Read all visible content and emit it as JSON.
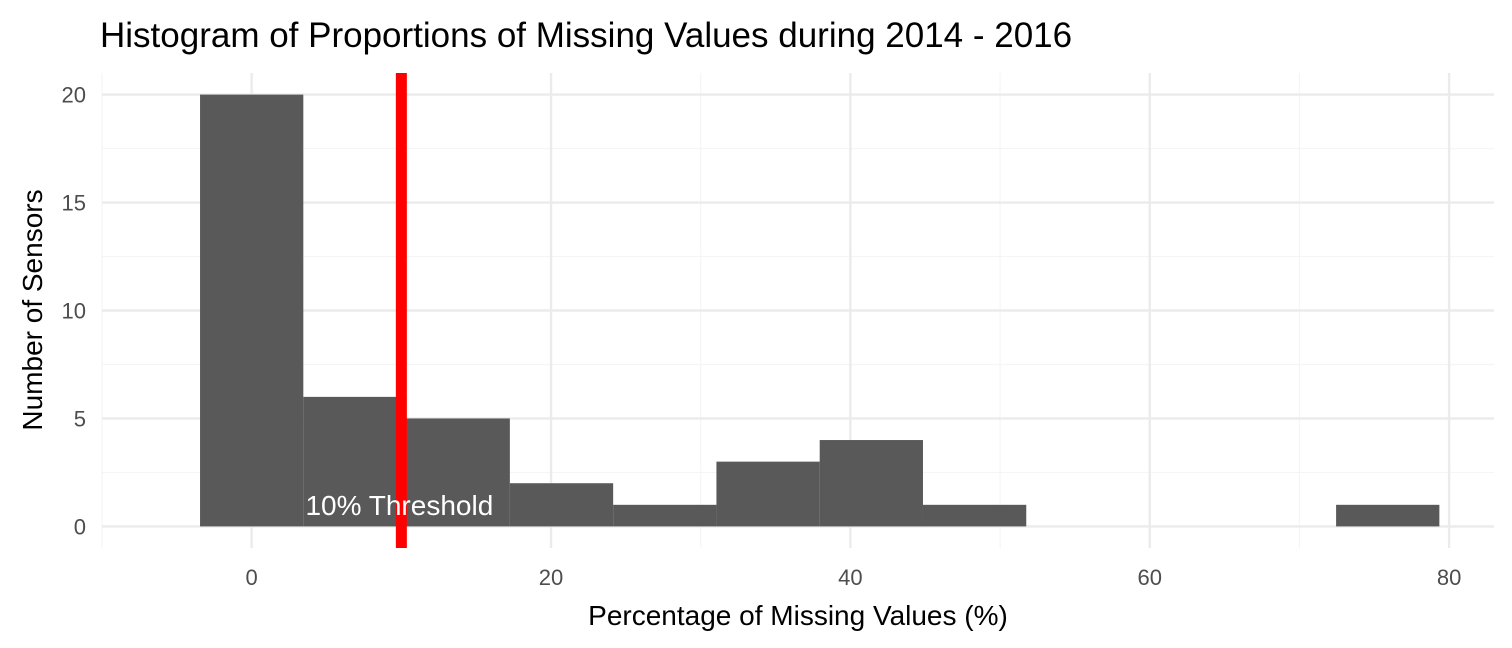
{
  "chart_data": {
    "type": "bar",
    "title": "Histogram of Proportions of Missing Values during 2014 - 2016",
    "xlabel": "Percentage of Missing Values (%)",
    "ylabel": "Number of Sensors",
    "xlim": [
      -10,
      83
    ],
    "ylim": [
      -1,
      21
    ],
    "x_ticks": [
      0,
      20,
      40,
      60,
      80
    ],
    "y_ticks": [
      0,
      5,
      10,
      15,
      20
    ],
    "grid": true,
    "bins": [
      {
        "start": -3.45,
        "end": 3.45,
        "count": 20
      },
      {
        "start": 3.45,
        "end": 10.35,
        "count": 6
      },
      {
        "start": 10.35,
        "end": 17.25,
        "count": 5
      },
      {
        "start": 17.25,
        "end": 24.15,
        "count": 2
      },
      {
        "start": 24.15,
        "end": 31.05,
        "count": 1
      },
      {
        "start": 31.05,
        "end": 37.95,
        "count": 3
      },
      {
        "start": 37.95,
        "end": 44.85,
        "count": 4
      },
      {
        "start": 44.85,
        "end": 51.75,
        "count": 1
      },
      {
        "start": 51.75,
        "end": 58.65,
        "count": 0
      },
      {
        "start": 58.65,
        "end": 65.55,
        "count": 0
      },
      {
        "start": 65.55,
        "end": 72.45,
        "count": 0
      },
      {
        "start": 72.45,
        "end": 79.35,
        "count": 1
      }
    ],
    "threshold": {
      "value": 10,
      "label": "10% Threshold",
      "label_x": 10,
      "label_y": 1
    },
    "colors": {
      "bar": "#595959",
      "threshold_line": "#ff0000",
      "grid_major": "#ebebeb",
      "grid_minor": "#f5f5f5",
      "annotation_text": "#ffffff"
    }
  }
}
